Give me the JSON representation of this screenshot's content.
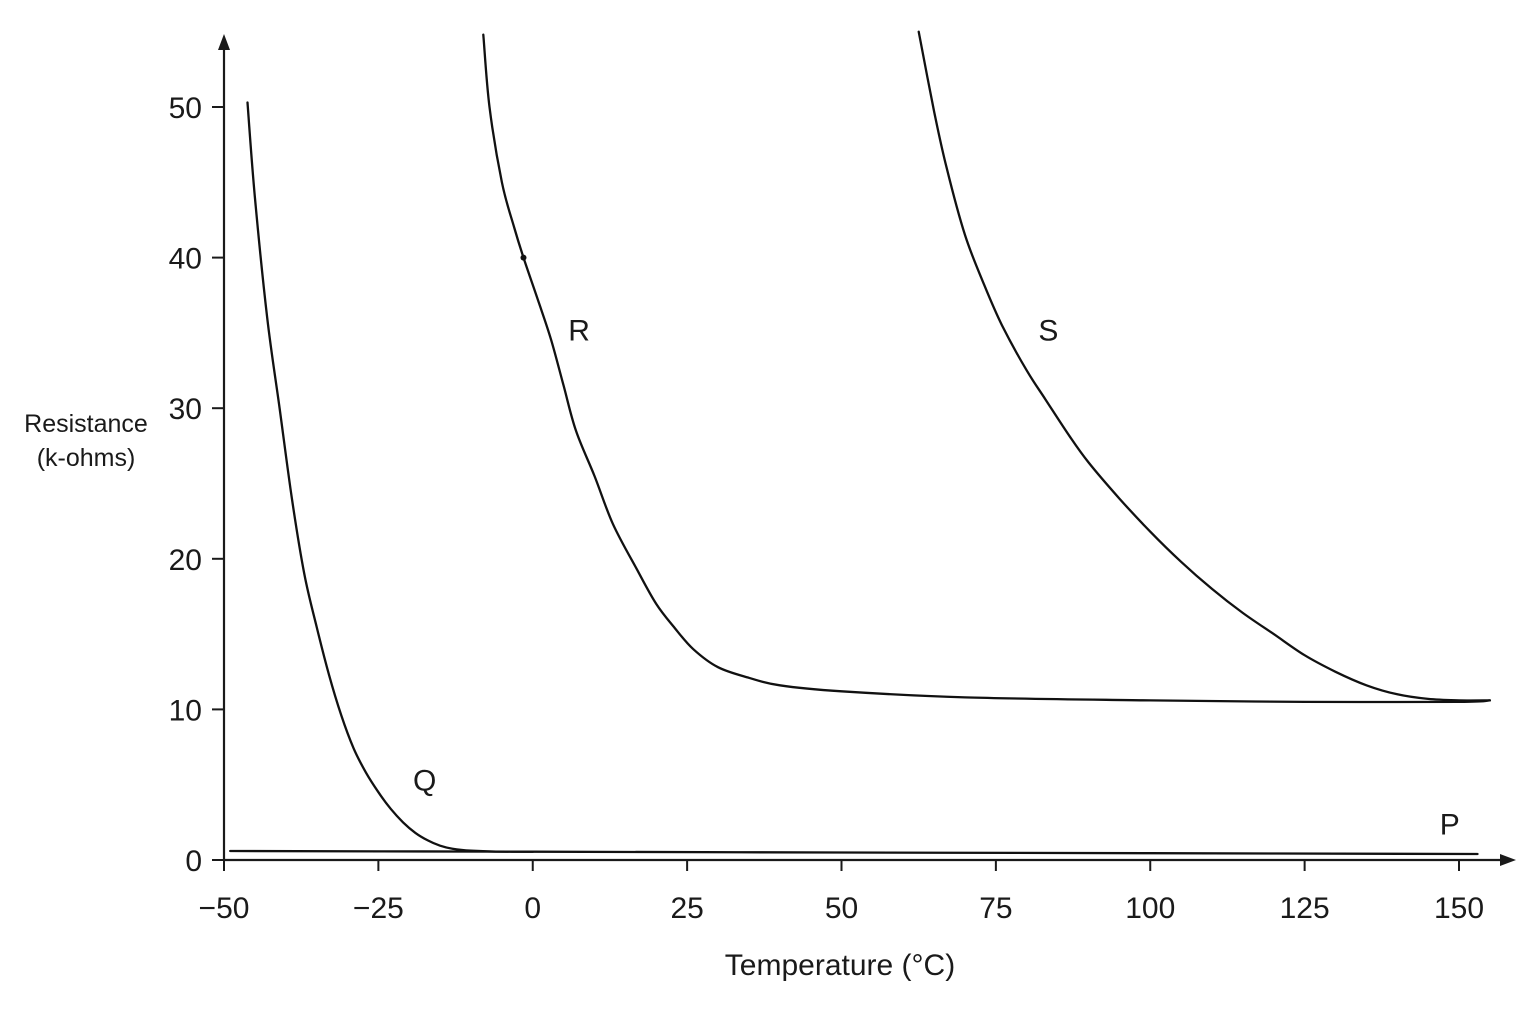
{
  "chart_data": {
    "type": "line",
    "title": "",
    "xlabel": "Temperature (°C)",
    "ylabel_lines": [
      "Resistance",
      "(k-ohms)"
    ],
    "xlim": [
      -50,
      155
    ],
    "ylim": [
      0,
      55
    ],
    "x_ticks": [
      -50,
      -25,
      0,
      25,
      50,
      75,
      100,
      125,
      150
    ],
    "x_tick_labels": [
      "−50",
      "−25",
      "0",
      "25",
      "50",
      "75",
      "100",
      "125",
      "150"
    ],
    "y_ticks": [
      0,
      10,
      20,
      30,
      40,
      50
    ],
    "y_tick_labels": [
      "0",
      "10",
      "20",
      "30",
      "40",
      "50"
    ],
    "grid": false,
    "series": [
      {
        "name": "P",
        "points": [
          [
            -49,
            0.6
          ],
          [
            0,
            0.55
          ],
          [
            50,
            0.5
          ],
          [
            100,
            0.45
          ],
          [
            153,
            0.4
          ]
        ]
      },
      {
        "name": "Q",
        "points": [
          [
            -46.2,
            50.3
          ],
          [
            -45,
            44
          ],
          [
            -43,
            36
          ],
          [
            -41,
            30
          ],
          [
            -39,
            24
          ],
          [
            -37,
            19
          ],
          [
            -35,
            15.5
          ],
          [
            -33,
            12.3
          ],
          [
            -31,
            9.6
          ],
          [
            -29,
            7.4
          ],
          [
            -27,
            5.8
          ],
          [
            -25,
            4.5
          ],
          [
            -23,
            3.4
          ],
          [
            -21,
            2.5
          ],
          [
            -19,
            1.8
          ],
          [
            -17,
            1.3
          ],
          [
            -15,
            0.95
          ],
          [
            -13,
            0.75
          ],
          [
            -10,
            0.62
          ],
          [
            -6,
            0.56
          ],
          [
            0,
            0.55
          ]
        ]
      },
      {
        "name": "R",
        "points": [
          [
            -8,
            54.8
          ],
          [
            -7,
            50
          ],
          [
            -5,
            45
          ],
          [
            -3,
            42
          ],
          [
            -1.5,
            40
          ],
          [
            1,
            37
          ],
          [
            3,
            34.5
          ],
          [
            5,
            31.5
          ],
          [
            7,
            28.5
          ],
          [
            10,
            25.5
          ],
          [
            13,
            22.3
          ],
          [
            17,
            19.2
          ],
          [
            20,
            17
          ],
          [
            23,
            15.4
          ],
          [
            26,
            14
          ],
          [
            30,
            12.8
          ],
          [
            35,
            12.1
          ],
          [
            40,
            11.6
          ],
          [
            50,
            11.2
          ],
          [
            70,
            10.8
          ],
          [
            100,
            10.6
          ],
          [
            125,
            10.5
          ],
          [
            150,
            10.5
          ],
          [
            155,
            10.6
          ]
        ]
      },
      {
        "name": "S",
        "points": [
          [
            62.5,
            55
          ],
          [
            65,
            49.7
          ],
          [
            67,
            46
          ],
          [
            70,
            41.5
          ],
          [
            73,
            38.3
          ],
          [
            76,
            35.5
          ],
          [
            80,
            32.5
          ],
          [
            83,
            30.6
          ],
          [
            87,
            28.1
          ],
          [
            90,
            26.4
          ],
          [
            95,
            24
          ],
          [
            100,
            21.8
          ],
          [
            105,
            19.8
          ],
          [
            110,
            18
          ],
          [
            115,
            16.4
          ],
          [
            120,
            15
          ],
          [
            125,
            13.6
          ],
          [
            130,
            12.5
          ],
          [
            135,
            11.6
          ],
          [
            140,
            11
          ],
          [
            145,
            10.7
          ],
          [
            150,
            10.6
          ],
          [
            155,
            10.6
          ]
        ]
      }
    ],
    "marker_point": [
      -1.5,
      40
    ],
    "series_label_positions": [
      {
        "label": "P",
        "x": 148.5,
        "y": 1.7
      },
      {
        "label": "Q",
        "x": -17.5,
        "y": 4.6
      },
      {
        "label": "R",
        "x": 7.5,
        "y": 34.5
      },
      {
        "label": "S",
        "x": 83.5,
        "y": 34.5
      }
    ]
  }
}
